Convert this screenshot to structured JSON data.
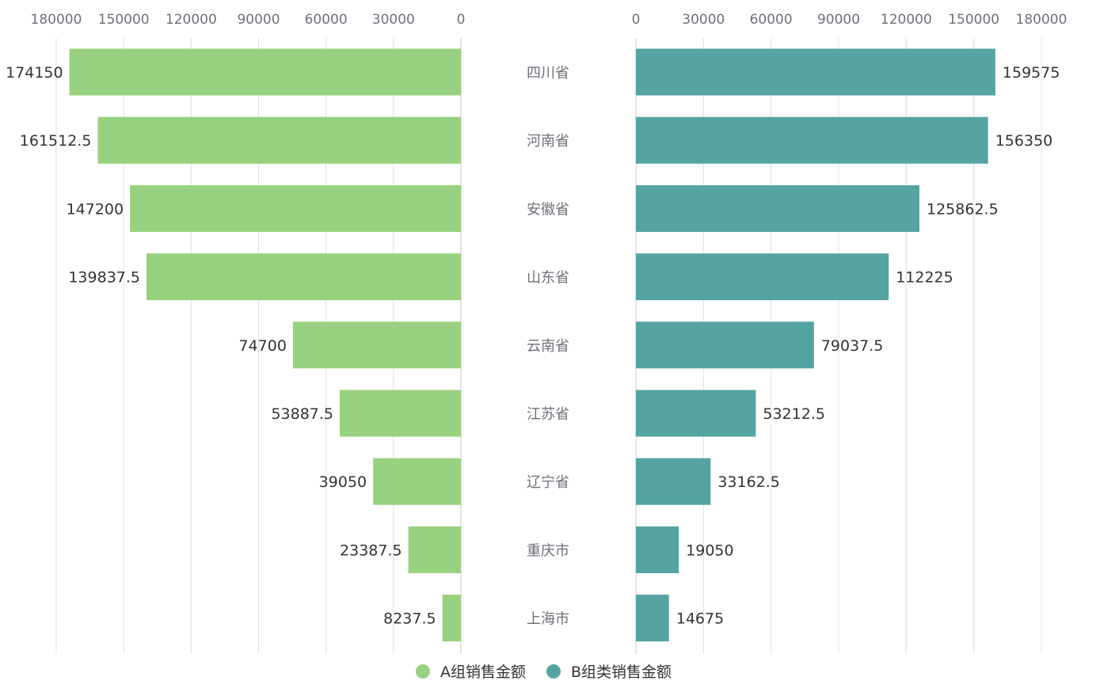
{
  "chart_data": {
    "type": "bar",
    "orientation": "horizontal-butterfly",
    "categories": [
      "四川省",
      "河南省",
      "安徽省",
      "山东省",
      "云南省",
      "江苏省",
      "辽宁省",
      "重庆市",
      "上海市"
    ],
    "series": [
      {
        "name": "A组销售金额",
        "color": "#98d17f",
        "side": "left",
        "values": [
          174150,
          161512.5,
          147200,
          139837.5,
          74700,
          53887.5,
          39050,
          23387.5,
          8237.5
        ],
        "value_labels": [
          "174150",
          "161512.5",
          "147200",
          "139837.5",
          "74700",
          "53887.5",
          "39050",
          "23387.5",
          "8237.5"
        ]
      },
      {
        "name": "B组类销售金额",
        "color": "#55a4a2",
        "side": "right",
        "values": [
          159575,
          156350,
          125862.5,
          112225,
          79037.5,
          53212.5,
          33162.5,
          19050,
          14675
        ],
        "value_labels": [
          "159575",
          "156350",
          "125862.5",
          "112225",
          "79037.5",
          "53212.5",
          "33162.5",
          "19050",
          "14675"
        ]
      }
    ],
    "xlim": [
      0,
      180000
    ],
    "ticks": [
      "0",
      "30000",
      "60000",
      "90000",
      "120000",
      "150000",
      "180000"
    ],
    "tick_values": [
      0,
      30000,
      60000,
      90000,
      120000,
      150000,
      180000
    ],
    "axis_position": "top",
    "grid": true,
    "legend_position": "bottom-center"
  }
}
